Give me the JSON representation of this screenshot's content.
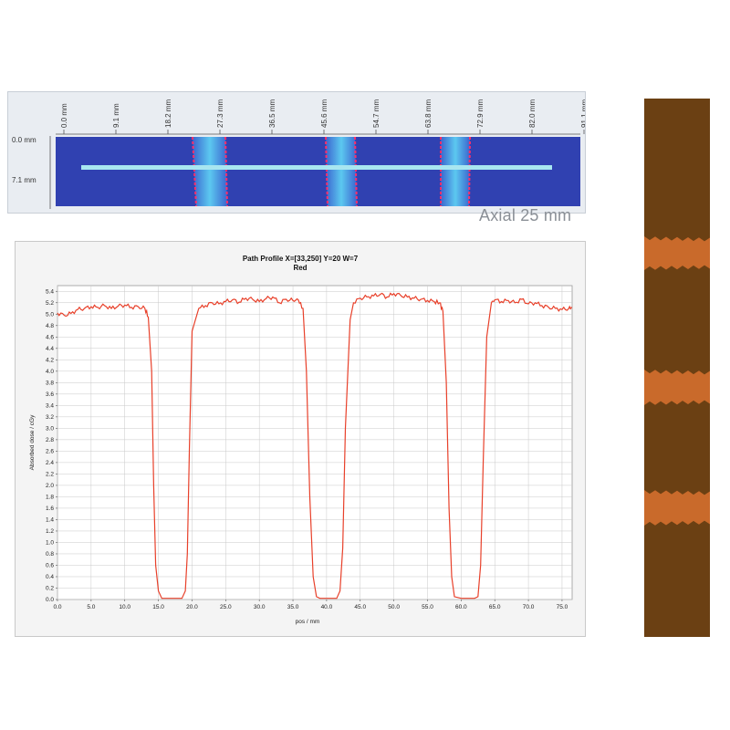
{
  "scan": {
    "ruler_x_labels": [
      "0.0 mm",
      "9.1 mm",
      "18.2 mm",
      "27.3 mm",
      "36.5 mm",
      "45.6 mm",
      "54.7 mm",
      "63.8 mm",
      "72.9 mm",
      "82.0 mm",
      "91.1 mm"
    ],
    "ruler_y_labels": [
      "0.0 mm",
      "7.1 mm"
    ],
    "caption": "Axial 25 mm",
    "colors": {
      "film": "#2c3bb5",
      "gap": "#48b6e8",
      "edge": "#e8305a",
      "profile_line": "#a8e6f0"
    }
  },
  "plot": {
    "title_line1": "Path Profile X=[33,250] Y=20 W=7",
    "title_line2": "Red",
    "colors": {
      "curve": "#e8402a",
      "grid": "#c8c8c8",
      "plot_bg": "#ffffff"
    }
  },
  "chart_data": {
    "type": "line",
    "title": "Path Profile X=[33,250] Y=20 W=7",
    "subtitle": "Red",
    "xlabel": "pos / mm",
    "ylabel": "Absorbed dose / cGy",
    "xlim": [
      0,
      76.5
    ],
    "ylim": [
      0,
      5.5
    ],
    "x_ticks": [
      "0.0",
      "5.0",
      "10.0",
      "15.0",
      "20.0",
      "25.0",
      "30.0",
      "35.0",
      "40.0",
      "45.0",
      "50.0",
      "55.0",
      "60.0",
      "65.0",
      "70.0",
      "75.0"
    ],
    "y_ticks": [
      "0.0",
      "0.2",
      "0.4",
      "0.6",
      "0.8",
      "1.0",
      "1.2",
      "1.4",
      "1.6",
      "1.8",
      "2.0",
      "2.2",
      "2.4",
      "2.6",
      "2.8",
      "3.0",
      "3.2",
      "3.4",
      "3.6",
      "3.8",
      "4.0",
      "4.2",
      "4.4",
      "4.6",
      "4.8",
      "5.0",
      "5.2",
      "5.4"
    ],
    "grid": true,
    "series": [
      {
        "x": [
          0.0,
          1.0,
          2.0,
          3.0,
          4.0,
          5.0,
          6.0,
          7.0,
          8.0,
          9.0,
          10.0,
          11.0,
          12.0,
          13.0,
          13.5,
          14.0,
          14.3,
          14.6,
          15.0,
          15.5,
          16.0,
          17.0,
          18.0,
          18.5,
          19.0,
          19.3,
          19.6,
          20.0,
          21.0,
          22.0,
          23.0,
          24.0,
          25.0,
          26.0,
          27.0,
          28.0,
          29.0,
          30.0,
          31.0,
          32.0,
          33.0,
          34.0,
          35.0,
          35.8,
          36.5,
          37.0,
          37.5,
          38.0,
          38.5,
          39.0,
          40.0,
          41.0,
          41.5,
          42.0,
          42.4,
          42.8,
          43.5,
          44.0,
          45.0,
          46.0,
          47.0,
          48.0,
          49.0,
          50.0,
          51.0,
          52.0,
          53.0,
          54.0,
          55.0,
          56.0,
          56.8,
          57.3,
          57.8,
          58.2,
          58.6,
          59.0,
          60.0,
          61.0,
          62.0,
          62.5,
          62.9,
          63.3,
          63.8,
          64.5,
          65.0,
          66.0,
          67.0,
          68.0,
          69.0,
          70.0,
          71.0,
          72.0,
          73.0,
          74.0,
          75.0,
          76.0,
          76.5
        ],
        "y": [
          5.02,
          4.98,
          5.01,
          5.08,
          5.1,
          5.13,
          5.12,
          5.15,
          5.1,
          5.14,
          5.16,
          5.12,
          5.13,
          5.1,
          4.95,
          4.0,
          2.0,
          0.6,
          0.15,
          0.02,
          0.02,
          0.02,
          0.02,
          0.02,
          0.15,
          0.8,
          2.6,
          4.7,
          5.1,
          5.15,
          5.2,
          5.18,
          5.22,
          5.25,
          5.21,
          5.28,
          5.26,
          5.22,
          5.27,
          5.3,
          5.2,
          5.26,
          5.24,
          5.25,
          5.1,
          4.0,
          1.8,
          0.4,
          0.05,
          0.02,
          0.02,
          0.02,
          0.02,
          0.15,
          0.9,
          3.0,
          4.9,
          5.2,
          5.28,
          5.3,
          5.32,
          5.35,
          5.3,
          5.36,
          5.33,
          5.3,
          5.28,
          5.26,
          5.24,
          5.22,
          5.2,
          5.05,
          3.8,
          1.6,
          0.4,
          0.05,
          0.02,
          0.02,
          0.02,
          0.05,
          0.6,
          2.5,
          4.6,
          5.2,
          5.25,
          5.22,
          5.24,
          5.2,
          5.26,
          5.18,
          5.2,
          5.15,
          5.12,
          5.1,
          5.08,
          5.1,
          5.12
        ]
      }
    ]
  },
  "strip": {
    "colors": {
      "base": "#6b4013",
      "band": "#c96a2b"
    }
  }
}
